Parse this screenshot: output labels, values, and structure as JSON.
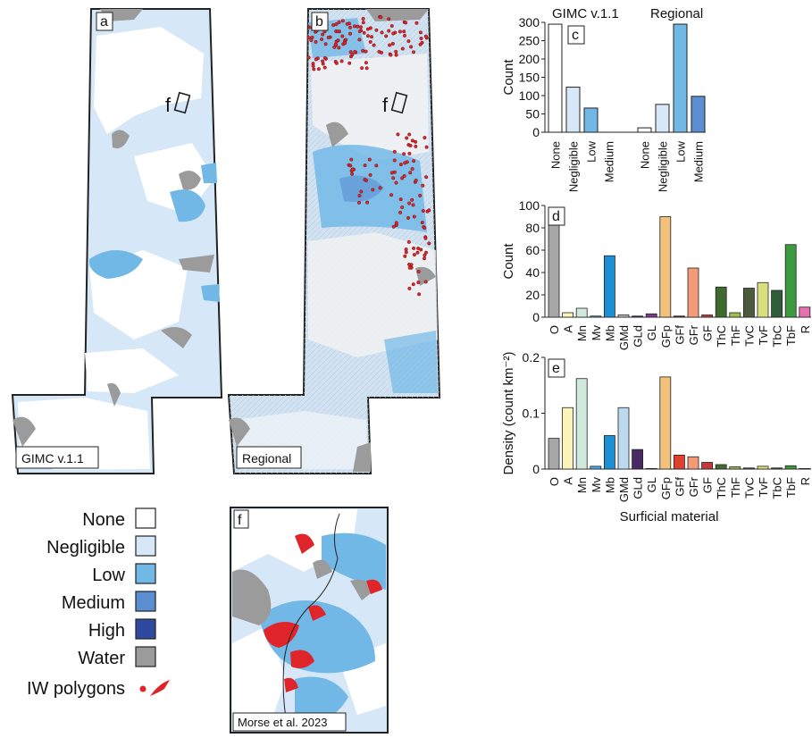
{
  "panel_labels": {
    "a": "a",
    "b": "b",
    "c": "c",
    "d": "d",
    "e": "e",
    "f": "f"
  },
  "map_a_caption": "GIMC v.1.1",
  "map_b_caption": "Regional",
  "map_f_caption": "Morse et al. 2023",
  "inset_marker_label": "f",
  "legend": {
    "items": [
      {
        "label": "None",
        "color": "#ffffff"
      },
      {
        "label": "Negligible",
        "color": "#d6e8f8"
      },
      {
        "label": "Low",
        "color": "#72b8e6"
      },
      {
        "label": "Medium",
        "color": "#5b8fd2"
      },
      {
        "label": "High",
        "color": "#2d4aa0"
      },
      {
        "label": "Water",
        "color": "#9b9b9b"
      }
    ],
    "iw_label": "IW polygons",
    "iw_color": "#e0252a"
  },
  "chart_data": [
    {
      "panel": "c",
      "type": "bar",
      "groups": [
        "GIMC v.1.1",
        "Regional"
      ],
      "categories": [
        "None",
        "Negligible",
        "Low",
        "Medium"
      ],
      "series": [
        {
          "name": "GIMC v.1.1",
          "values": [
            295,
            123,
            66,
            0
          ]
        },
        {
          "name": "Regional",
          "values": [
            12,
            76,
            295,
            98
          ]
        }
      ],
      "colors": [
        "#ffffff",
        "#d6e8f8",
        "#72b8e6",
        "#5b8fd2"
      ],
      "ylabel": "Count",
      "ylim": [
        0,
        300
      ],
      "yticks": [
        "0",
        "50",
        "100",
        "150",
        "200",
        "250",
        "300"
      ]
    },
    {
      "panel": "d",
      "type": "bar",
      "categories": [
        "O",
        "A",
        "Mn",
        "Mv",
        "Mb",
        "GMd",
        "GLd",
        "GL",
        "GFp",
        "GFf",
        "GFr",
        "GF",
        "ThC",
        "ThF",
        "TvC",
        "TvF",
        "TbC",
        "TbF",
        "R"
      ],
      "values": [
        85,
        4,
        8,
        1,
        55,
        2,
        1,
        3,
        90,
        1,
        44,
        2,
        27,
        4,
        26,
        31,
        24,
        65,
        9
      ],
      "colors": [
        "#a7a7a7",
        "#faf4b8",
        "#cfe9dc",
        "#46a9e6",
        "#1d8fd3",
        "#bfbfbf",
        "#4a2a62",
        "#7b3a91",
        "#f2c27a",
        "#8a1a1a",
        "#f39a76",
        "#c4393c",
        "#3f6b2f",
        "#9fbf4a",
        "#4e5a3c",
        "#d9df7c",
        "#2f5f38",
        "#3c9a3e",
        "#e56fb0"
      ],
      "ylabel": "Count",
      "ylim": [
        0,
        100
      ],
      "yticks": [
        "0",
        "20",
        "40",
        "60",
        "80",
        "100"
      ]
    },
    {
      "panel": "e",
      "type": "bar",
      "categories": [
        "O",
        "A",
        "Mn",
        "Mv",
        "Mb",
        "GMd",
        "GLd",
        "GL",
        "GFp",
        "GFf",
        "GFr",
        "GF",
        "ThC",
        "ThF",
        "TvC",
        "TvF",
        "TbC",
        "TbF",
        "R"
      ],
      "values": [
        0.055,
        0.11,
        0.162,
        0.005,
        0.06,
        0.11,
        0.035,
        0.001,
        0.165,
        0.025,
        0.022,
        0.012,
        0.008,
        0.004,
        0.002,
        0.005,
        0.002,
        0.006,
        0.001
      ],
      "colors": [
        "#a7a7a7",
        "#faf4b8",
        "#cfe9dc",
        "#46a9e6",
        "#1d8fd3",
        "#bcd9ee",
        "#4a2a62",
        "#7b3a91",
        "#f2c27a",
        "#e0402c",
        "#f39a76",
        "#c4393c",
        "#3f6b2f",
        "#9fbf4a",
        "#4e5a3c",
        "#d9df7c",
        "#2f5f38",
        "#3c9a3e",
        "#e56fb0"
      ],
      "ylabel": "Density (count km⁻²)",
      "xlabel": "Surficial material",
      "ylim": [
        0,
        0.2
      ],
      "yticks": [
        "0",
        "0.1",
        "0.2"
      ]
    }
  ]
}
